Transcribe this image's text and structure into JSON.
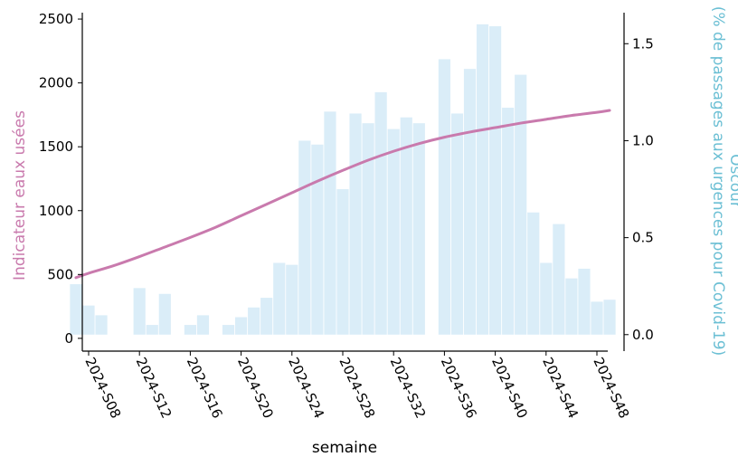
{
  "chart_data": {
    "type": "bar",
    "xlabel": "semaine",
    "y_left_label": "Indicateur eaux usées",
    "y_right_label_line1": "Oscour",
    "y_right_label_line2": "(% de passages aux urgences pour Covid-19)",
    "colors": {
      "line": "#c97aad",
      "bars": "#daedf8",
      "right_label": "#6bbfd4",
      "left_label": "#c97aad"
    },
    "ylim_left": [
      -100,
      2550
    ],
    "ylim_right": [
      -0.085,
      1.66
    ],
    "left_ticks": [
      {
        "value": 0,
        "label": "0"
      },
      {
        "value": 500,
        "label": "500"
      },
      {
        "value": 1000,
        "label": "1000"
      },
      {
        "value": 1500,
        "label": "1500"
      },
      {
        "value": 2000,
        "label": "2000"
      },
      {
        "value": 2500,
        "label": "2500"
      }
    ],
    "right_ticks": [
      {
        "value": 0,
        "label": "0.0"
      },
      {
        "value": 0.5,
        "label": "0.5"
      },
      {
        "value": 1.0,
        "label": "1.0"
      },
      {
        "value": 1.5,
        "label": "1.5"
      }
    ],
    "x_ticks": [
      {
        "week": 8,
        "label": "2024-S08"
      },
      {
        "week": 12,
        "label": "2024-S12"
      },
      {
        "week": 16,
        "label": "2024-S16"
      },
      {
        "week": 20,
        "label": "2024-S20"
      },
      {
        "week": 24,
        "label": "2024-S24"
      },
      {
        "week": 28,
        "label": "2024-S28"
      },
      {
        "week": 32,
        "label": "2024-S32"
      },
      {
        "week": 36,
        "label": "2024-S36"
      },
      {
        "week": 40,
        "label": "2024-S40"
      },
      {
        "week": 44,
        "label": "2024-S44"
      },
      {
        "week": 48,
        "label": "2024-S48"
      }
    ],
    "bar_weeks": [
      7,
      8,
      9,
      10,
      11,
      12,
      13,
      14,
      15,
      16,
      17,
      18,
      19,
      20,
      21,
      22,
      23,
      24,
      25,
      26,
      27,
      28,
      29,
      30,
      31,
      32,
      33,
      34,
      35,
      36,
      37,
      38,
      39,
      40,
      41,
      42,
      43,
      44,
      45,
      46,
      47,
      48,
      49
    ],
    "series": [
      {
        "name": "Oscour",
        "axis": "right",
        "type": "bar",
        "values": [
          0.26,
          0.15,
          0.1,
          0,
          0,
          0.24,
          0.05,
          0.21,
          0,
          0.05,
          0.1,
          0,
          0.05,
          0.09,
          0.14,
          0.19,
          0.37,
          0.36,
          1.0,
          0.98,
          1.15,
          0.75,
          1.14,
          1.09,
          1.25,
          1.06,
          1.12,
          1.09,
          0,
          1.42,
          1.14,
          1.37,
          1.6,
          1.59,
          1.17,
          1.34,
          0.63,
          0.37,
          0.57,
          0.29,
          0.34,
          0.17,
          0.18
        ]
      },
      {
        "name": "Indicateur eaux usées",
        "axis": "left",
        "type": "line",
        "x": [
          7,
          8,
          10,
          12,
          14,
          16,
          18,
          20,
          22,
          24,
          26,
          28,
          30,
          32,
          34,
          36,
          38,
          40,
          42,
          44,
          46,
          48,
          49
        ],
        "values": [
          475,
          510,
          570,
          640,
          715,
          790,
          870,
          960,
          1050,
          1140,
          1230,
          1315,
          1395,
          1465,
          1525,
          1575,
          1615,
          1650,
          1685,
          1715,
          1745,
          1770,
          1785
        ]
      }
    ]
  }
}
